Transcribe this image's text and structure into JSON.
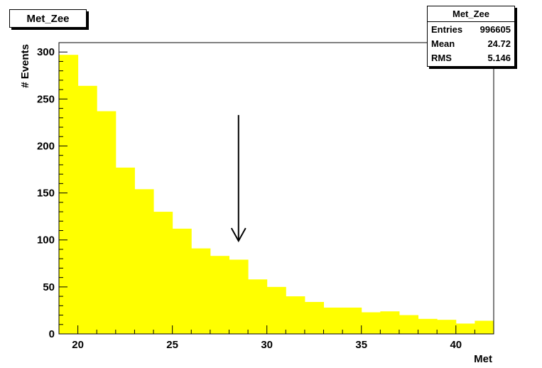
{
  "title": "Met_Zee",
  "stats": {
    "header": "Met_Zee",
    "rows": [
      {
        "label": "Entries",
        "value": "996605"
      },
      {
        "label": "Mean",
        "value": "24.72"
      },
      {
        "label": "RMS",
        "value": "5.146"
      }
    ]
  },
  "colors": {
    "fill": "#ffff00",
    "axis": "#000000",
    "background": "#ffffff"
  },
  "chart_data": {
    "type": "bar",
    "title": "Met_Zee",
    "xlabel": "Met",
    "ylabel": "# Events",
    "xlim": [
      19,
      42
    ],
    "ylim": [
      0,
      310
    ],
    "bin_width": 1,
    "bin_edges_start": 19,
    "values": [
      297,
      264,
      237,
      177,
      154,
      130,
      112,
      91,
      83,
      79,
      58,
      50,
      40,
      34,
      28,
      28,
      23,
      24,
      20,
      16,
      15,
      11,
      14
    ],
    "x_ticks": [
      20,
      25,
      30,
      35,
      40
    ],
    "y_ticks": [
      0,
      50,
      100,
      150,
      200,
      250,
      300
    ],
    "annotation": {
      "type": "arrow",
      "x": 28.5,
      "y_from": 233,
      "y_to": 99
    }
  }
}
